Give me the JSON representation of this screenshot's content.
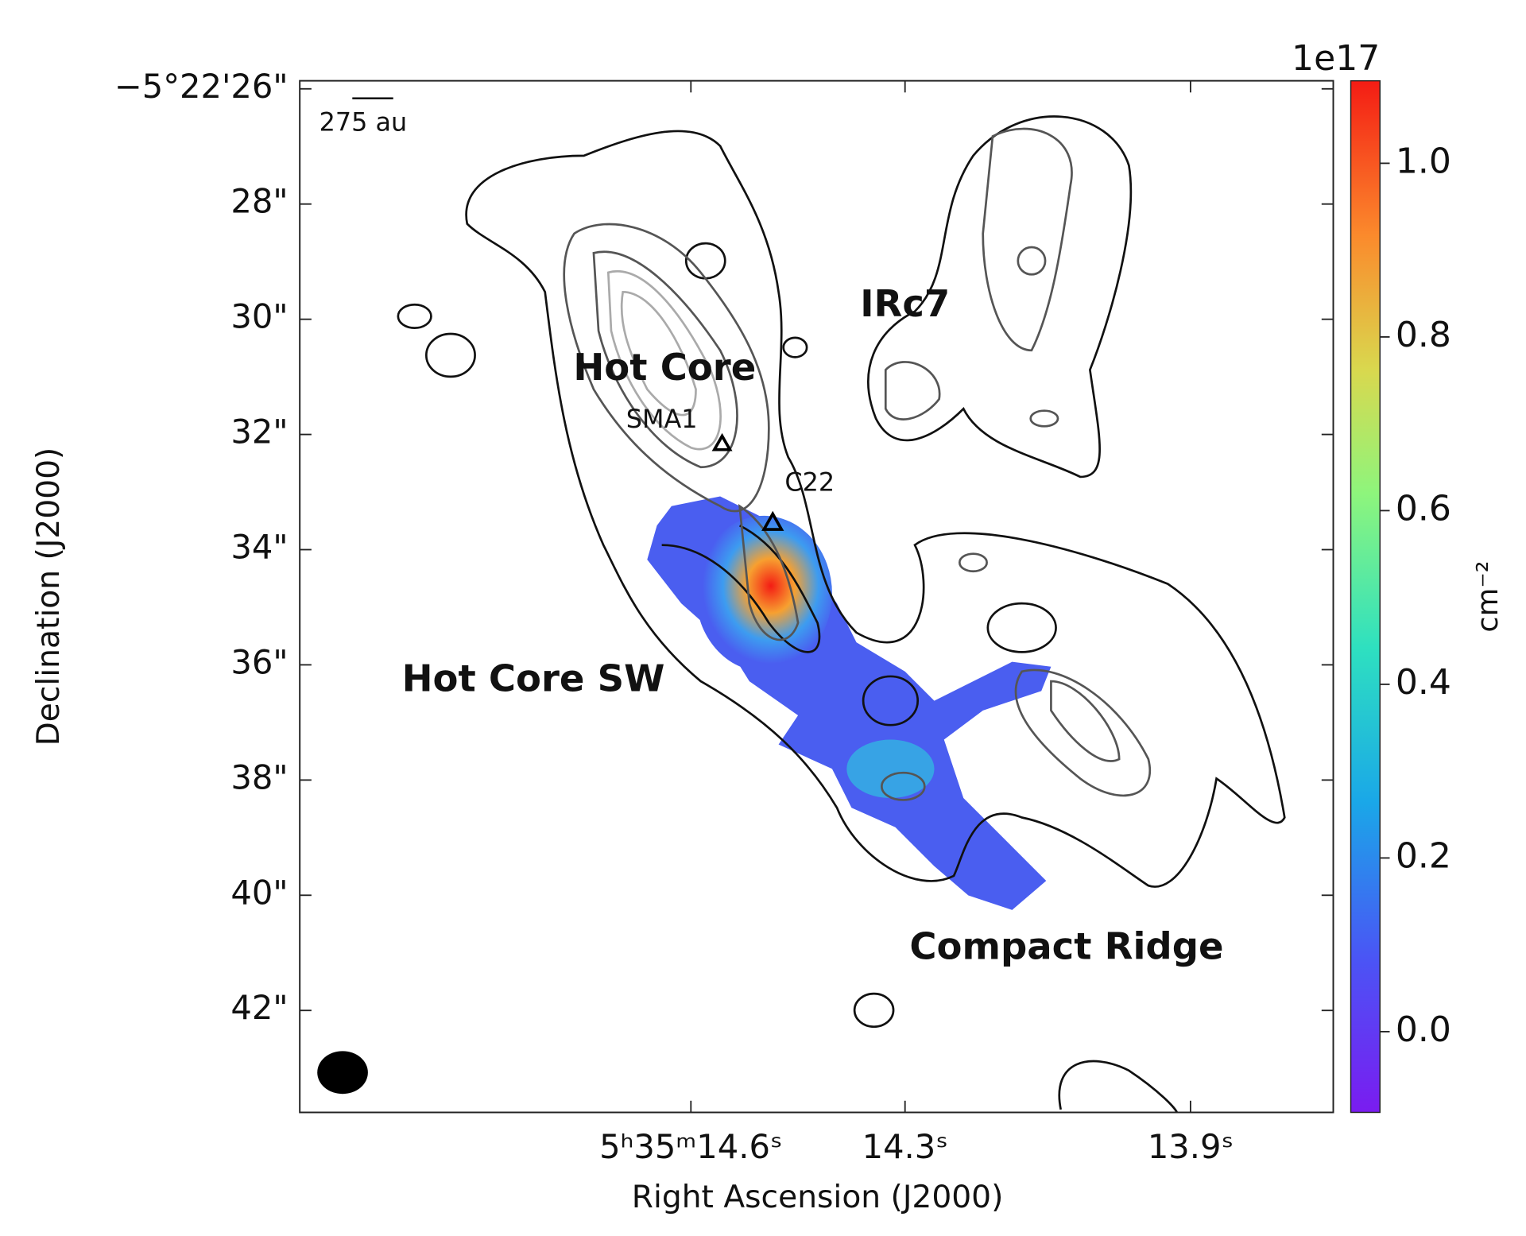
{
  "chart_data": {
    "type": "map",
    "xlabel": "Right Ascension (J2000)",
    "ylabel": "Declination (J2000)",
    "xlim": [
      15.148,
      13.7
    ],
    "xticks": [
      {
        "value": 14.6,
        "label": "5ʰ35ᵐ14.6ˢ"
      },
      {
        "value": 14.3,
        "label": "14.3ˢ"
      },
      {
        "value": 13.9,
        "label": "13.9ˢ"
      }
    ],
    "ylim": [
      43.77,
      25.86
    ],
    "yticks": [
      {
        "value": 26,
        "label": "−5°22'26\""
      },
      {
        "value": 28,
        "label": "28\""
      },
      {
        "value": 30,
        "label": "30\""
      },
      {
        "value": 32,
        "label": "32\""
      },
      {
        "value": 34,
        "label": "34\""
      },
      {
        "value": 36,
        "label": "36\""
      },
      {
        "value": 38,
        "label": "38\""
      },
      {
        "value": 40,
        "label": "40\""
      },
      {
        "value": 42,
        "label": "42\""
      }
    ],
    "colorbar": {
      "label": "cm⁻²",
      "offset": "1e17",
      "clim": [
        -0.093,
        1.095
      ],
      "ticks": [
        {
          "value": 0,
          "label": "0.0"
        },
        {
          "value": 0.2,
          "label": "0.2"
        },
        {
          "value": 0.4,
          "label": "0.4"
        },
        {
          "value": 0.6,
          "label": "0.6"
        },
        {
          "value": 0.8,
          "label": "0.8"
        },
        {
          "value": 1.0,
          "label": "1.0"
        }
      ]
    },
    "scalebar": "275 au",
    "annotations": [
      {
        "text": "Hot Core",
        "color": "#e8161b"
      },
      {
        "text": "IRc7",
        "color": "#e8161b"
      },
      {
        "text": "Hot Core SW",
        "color": "#e8161b"
      },
      {
        "text": "Compact Ridge",
        "color": "#1a1ae6"
      },
      {
        "text": "SMA1",
        "color": "#222222"
      },
      {
        "text": "C22",
        "color": "#222222"
      }
    ]
  }
}
